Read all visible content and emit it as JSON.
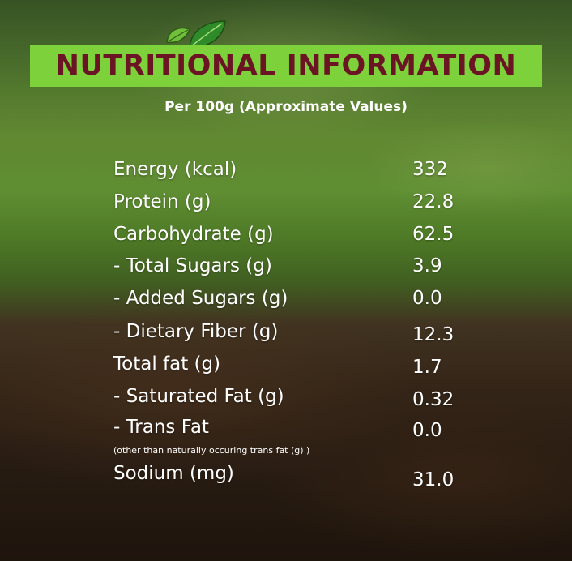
{
  "header": {
    "logo_icon": "leaf-icon",
    "title": "NUTRITIONAL INFORMATION",
    "subtitle": "Per 100g (Approximate Values)"
  },
  "colors": {
    "banner": "#7dd13a",
    "title_text": "#6a1424",
    "body_text": "#ffffff"
  },
  "nutrients": [
    {
      "label": "Energy (kcal)",
      "value": "332"
    },
    {
      "label": "Protein (g)",
      "value": "22.8"
    },
    {
      "label": "Carbohydrate (g)",
      "value": "62.5"
    },
    {
      "label": "- Total Sugars (g)",
      "value": "3.9"
    },
    {
      "label": "- Added Sugars (g)",
      "value": "0.0"
    },
    {
      "label": "- Dietary Fiber (g)",
      "value": "12.3"
    },
    {
      "label": "Total fat (g)",
      "value": "1.7"
    },
    {
      "label": "- Saturated Fat (g)",
      "value": "0.32"
    },
    {
      "label": "- Trans Fat",
      "value": "0.0"
    },
    {
      "label": "Sodium (mg)",
      "value": "31.0"
    }
  ],
  "footnote": "(other than naturally occuring trans fat (g) )"
}
